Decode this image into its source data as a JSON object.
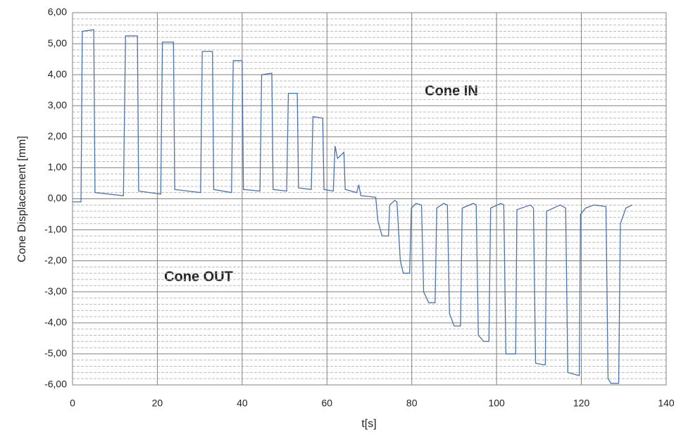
{
  "chart_data": {
    "type": "line",
    "xlabel": "t[s]",
    "ylabel": "Cone Displacement  [mm]",
    "annotations": [
      "Cone IN",
      "Cone OUT"
    ],
    "xlim": [
      0,
      140
    ],
    "xticks": [
      0,
      20,
      40,
      60,
      80,
      100,
      120,
      140
    ],
    "ylim": [
      -6,
      6
    ],
    "yticks": [
      {
        "value": 6,
        "label": "6,00"
      },
      {
        "value": 5,
        "label": "5,00"
      },
      {
        "value": 4,
        "label": "4,00"
      },
      {
        "value": 3,
        "label": "3,00"
      },
      {
        "value": 2,
        "label": "2,00"
      },
      {
        "value": 1,
        "label": "1,00"
      },
      {
        "value": 0,
        "label": "0,00"
      },
      {
        "value": -1,
        "label": "-1,00"
      },
      {
        "value": -2,
        "label": "-2,00"
      },
      {
        "value": -3,
        "label": "-3,00"
      },
      {
        "value": -4,
        "label": "-4,00"
      },
      {
        "value": -5,
        "label": "-5,00"
      },
      {
        "value": -6,
        "label": "-6,00"
      }
    ],
    "yminor_ticks": [
      -5.8,
      -5.6,
      -5.4,
      -5.2,
      -4.8,
      -4.6,
      -4.4,
      -4.2,
      -3.8,
      -3.6,
      -3.4,
      -3.2,
      -2.8,
      -2.6,
      -2.4,
      -2.2,
      -1.8,
      -1.6,
      -1.4,
      -1.2,
      -0.8,
      -0.6,
      -0.4,
      -0.2,
      0.2,
      0.4,
      0.6,
      0.8,
      1.2,
      1.4,
      1.6,
      1.8,
      2.2,
      2.4,
      2.6,
      2.8,
      3.2,
      3.4,
      3.6,
      3.8,
      4.2,
      4.4,
      4.6,
      4.8,
      5.2,
      5.4,
      5.6,
      5.8
    ],
    "grid": true,
    "series": [
      {
        "color": "#4a72b0",
        "x": [
          0,
          2,
          2.3,
          5,
          5.3,
          12,
          12.5,
          15.3,
          15.6,
          20.8,
          21.2,
          23.8,
          24.1,
          30.2,
          30.6,
          33,
          33.3,
          37.5,
          37.9,
          40,
          40.3,
          44.2,
          44.6,
          47,
          47.3,
          50.5,
          50.9,
          53,
          53.3,
          56.3,
          56.7,
          59,
          59.3,
          61.5,
          61.9,
          62.5,
          64,
          64.3,
          67,
          67.5,
          68,
          71.5,
          72,
          73,
          74.5,
          74.8,
          76,
          76.5,
          77.3,
          78,
          79.5,
          79.9,
          81,
          82.3,
          82.8,
          84,
          85.5,
          85.9,
          87.5,
          88.4,
          88.9,
          90,
          91.5,
          91.9,
          94.5,
          95.2,
          95.7,
          97,
          98.2,
          98.6,
          101,
          101.7,
          102.2,
          104.5,
          104.8,
          108,
          108.7,
          109.2,
          111,
          111.5,
          111.8,
          115,
          116.3,
          116.8,
          119.5,
          119.8,
          121,
          123,
          125.8,
          126.3,
          127,
          128.8,
          129.2,
          130.5,
          132
        ],
        "values": [
          -0.1,
          -0.1,
          5.4,
          5.45,
          0.2,
          0.1,
          5.25,
          5.25,
          0.25,
          0.15,
          5.05,
          5.05,
          0.3,
          0.2,
          4.75,
          4.75,
          0.3,
          0.2,
          4.45,
          4.45,
          0.3,
          0.25,
          4.0,
          4.05,
          0.3,
          0.25,
          3.4,
          3.4,
          0.35,
          0.3,
          2.65,
          2.6,
          0.3,
          0.25,
          1.7,
          1.3,
          1.5,
          0.3,
          0.2,
          0.45,
          0.1,
          0.05,
          -0.7,
          -1.2,
          -1.2,
          -0.2,
          -0.05,
          -0.1,
          -2.0,
          -2.4,
          -2.4,
          -0.3,
          -0.15,
          -0.2,
          -3.0,
          -3.35,
          -3.35,
          -0.3,
          -0.15,
          -0.2,
          -3.7,
          -4.1,
          -4.1,
          -0.3,
          -0.15,
          -0.2,
          -4.4,
          -4.6,
          -4.6,
          -0.3,
          -0.15,
          -0.2,
          -5.0,
          -5.0,
          -0.35,
          -0.2,
          -0.3,
          -5.3,
          -5.35,
          -5.35,
          -0.4,
          -0.2,
          -0.3,
          -5.6,
          -5.7,
          -0.5,
          -0.3,
          -0.2,
          -0.25,
          -5.8,
          -5.95,
          -5.95,
          -0.8,
          -0.3,
          -0.2
        ]
      }
    ]
  }
}
